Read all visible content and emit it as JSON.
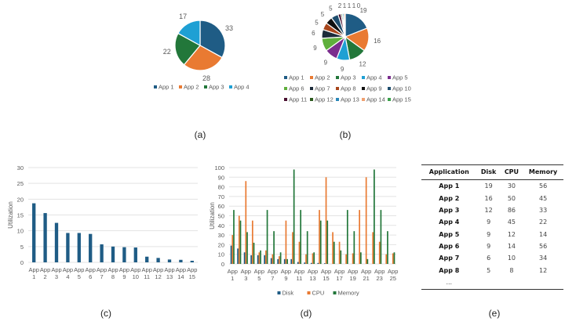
{
  "captions": {
    "a": "(a)",
    "b": "(b)",
    "c": "(c)",
    "d": "(d)",
    "e": "(e)"
  },
  "chart_data": [
    {
      "type": "pie",
      "id": "a",
      "categories": [
        "App 1",
        "App 2",
        "App 3",
        "App 4"
      ],
      "values": [
        33,
        28,
        22,
        17
      ],
      "colors": [
        "#1f5c85",
        "#e97a32",
        "#22773a",
        "#1ea0d4"
      ],
      "legend": "bottom"
    },
    {
      "type": "pie",
      "id": "b",
      "categories": [
        "App 1",
        "App 2",
        "App 3",
        "App 4",
        "App 5",
        "App 6",
        "App 7",
        "App 8",
        "App 9",
        "App 10",
        "App 11",
        "App 12",
        "App 13",
        "App 14",
        "App 15"
      ],
      "values": [
        19,
        16,
        12,
        9,
        9,
        9,
        6,
        5,
        5,
        5,
        2,
        1,
        1,
        1,
        0
      ],
      "colors": [
        "#1f5c85",
        "#e97a32",
        "#22773a",
        "#1ea0d4",
        "#7b2d8e",
        "#5faf3c",
        "#1c2b3a",
        "#a8461c",
        "#111111",
        "#1f4e6e",
        "#4a1030",
        "#2d5a1e",
        "#2a87b8",
        "#f0a070",
        "#3aa04a"
      ],
      "legend": "bottom"
    },
    {
      "type": "bar",
      "id": "c",
      "categories": [
        "App 1",
        "App 2",
        "App 3",
        "App 4",
        "App 5",
        "App 6",
        "App 7",
        "App 8",
        "App 9",
        "App 10",
        "App 11",
        "App 12",
        "App 13",
        "App 14",
        "App 15"
      ],
      "values": [
        18.7,
        15.6,
        12.5,
        9.3,
        9.3,
        9,
        5.7,
        5,
        4.8,
        4.7,
        1.8,
        1.4,
        0.9,
        0.8,
        0.5
      ],
      "ylabel": "Utilization",
      "ylim": [
        0,
        30
      ],
      "yticks": [
        0,
        5,
        10,
        15,
        20,
        25,
        30
      ],
      "grid": true,
      "color": "#1f5c85"
    },
    {
      "type": "bar",
      "id": "d",
      "categories": [
        "App 1",
        "App 2",
        "App 3",
        "App 4",
        "App 5",
        "App 6",
        "App 7",
        "App 8",
        "App 9",
        "App 10",
        "App 11",
        "App 12",
        "App 13",
        "App 14",
        "App 15",
        "App 16",
        "App 17",
        "App 18",
        "App 19",
        "App 20",
        "App 21",
        "App 22",
        "App 23",
        "App 24",
        "App 25"
      ],
      "xticklabels": [
        "App 1",
        "App 3",
        "App 5",
        "App 7",
        "App 9",
        "App 11",
        "App 13",
        "App 15",
        "App 17",
        "App 19",
        "App 21",
        "App 23",
        "App 25"
      ],
      "series": [
        {
          "name": "Disk",
          "color": "#1f5c85",
          "values": [
            19,
            16,
            12,
            9,
            9,
            9,
            6,
            5,
            5,
            5,
            2,
            1.5,
            1,
            1,
            0.7,
            0,
            0,
            0,
            0,
            0,
            0,
            0,
            0,
            0,
            0
          ]
        },
        {
          "name": "CPU",
          "color": "#e97a32",
          "values": [
            30,
            50,
            86,
            45,
            12,
            14,
            10,
            8,
            45,
            33,
            23,
            10,
            11,
            56,
            90,
            33,
            23,
            10,
            11,
            56,
            90,
            33,
            23,
            10,
            11
          ]
        },
        {
          "name": "Memory",
          "color": "#22773a",
          "values": [
            56,
            45,
            33,
            22,
            14,
            56,
            34,
            12,
            5,
            98,
            56,
            34,
            12,
            45,
            45,
            23,
            14,
            56,
            34,
            12,
            5,
            98,
            56,
            34,
            12
          ]
        }
      ],
      "ylabel": "Utilization",
      "ylim": [
        0,
        100
      ],
      "yticks": [
        0,
        10,
        20,
        30,
        40,
        50,
        60,
        70,
        80,
        90,
        100
      ],
      "grid": true,
      "legend": "bottom"
    }
  ],
  "table": {
    "headers": [
      "Application",
      "Disk",
      "CPU",
      "Memory"
    ],
    "rows": [
      [
        "App 1",
        "19",
        "30",
        "56"
      ],
      [
        "App 2",
        "16",
        "50",
        "45"
      ],
      [
        "App 3",
        "12",
        "86",
        "33"
      ],
      [
        "App 4",
        "9",
        "45",
        "22"
      ],
      [
        "App 5",
        "9",
        "12",
        "14"
      ],
      [
        "App 6",
        "9",
        "14",
        "56"
      ],
      [
        "App 7",
        "6",
        "10",
        "34"
      ],
      [
        "App 8",
        "5",
        "8",
        "12"
      ]
    ],
    "ellipsis": "..."
  }
}
